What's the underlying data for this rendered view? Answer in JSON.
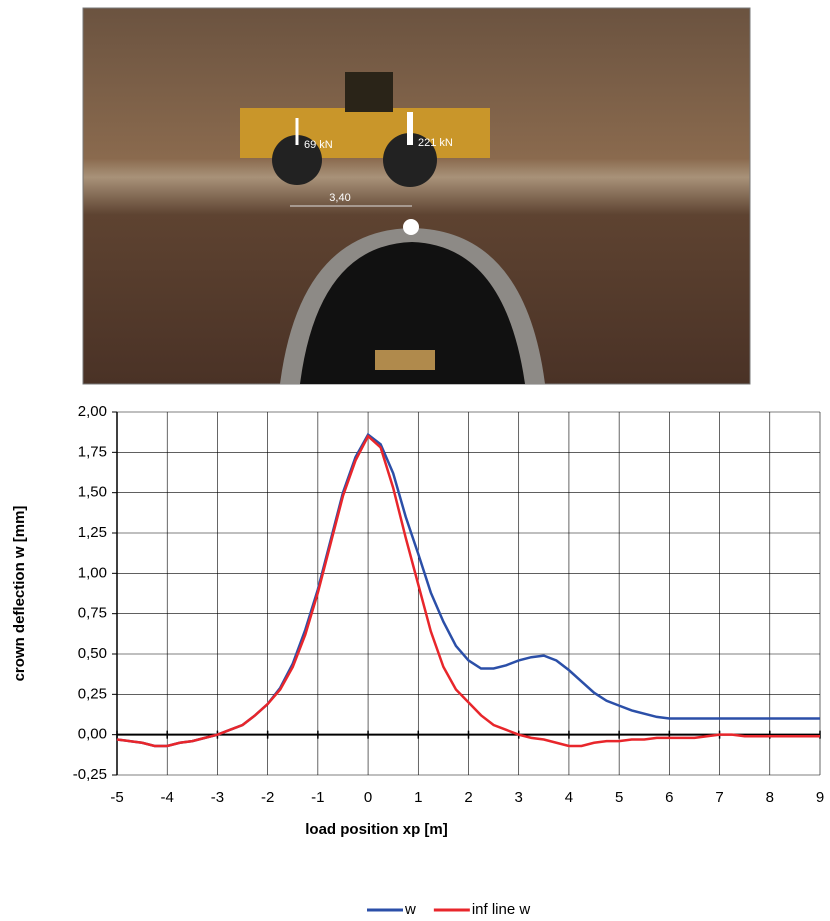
{
  "photo_labels": [
    "69 kN",
    "221 kN",
    "3,40"
  ],
  "chart_data": {
    "type": "line",
    "x_label": "load position  xp  [m]",
    "y_label": "crown deflection  w  [mm]",
    "x": [
      -5,
      -4.75,
      -4.5,
      -4.25,
      -4,
      -3.75,
      -3.5,
      -3.25,
      -3,
      -2.75,
      -2.5,
      -2.25,
      -2,
      -1.75,
      -1.5,
      -1.25,
      -1,
      -0.75,
      -0.5,
      -0.25,
      0,
      0.25,
      0.5,
      0.75,
      1,
      1.25,
      1.5,
      1.75,
      2,
      2.25,
      2.5,
      2.75,
      3,
      3.25,
      3.5,
      3.75,
      4,
      4.25,
      4.5,
      4.75,
      5,
      5.25,
      5.5,
      5.75,
      6,
      6.25,
      6.5,
      6.75,
      7,
      7.25,
      7.5,
      7.75,
      8,
      8.25,
      8.5,
      8.75,
      9
    ],
    "series": [
      {
        "name": "w",
        "color": "#2b4fa8",
        "values": [
          -0.03,
          -0.04,
          -0.05,
          -0.07,
          -0.07,
          -0.05,
          -0.04,
          -0.02,
          0,
          0.03,
          0.06,
          0.12,
          0.19,
          0.29,
          0.44,
          0.65,
          0.9,
          1.2,
          1.5,
          1.72,
          1.86,
          1.8,
          1.62,
          1.35,
          1.12,
          0.88,
          0.7,
          0.55,
          0.46,
          0.41,
          0.41,
          0.43,
          0.46,
          0.48,
          0.49,
          0.46,
          0.4,
          0.33,
          0.26,
          0.21,
          0.18,
          0.15,
          0.13,
          0.11,
          0.1,
          0.1,
          0.1,
          0.1,
          0.1,
          0.1,
          0.1,
          0.1,
          0.1,
          0.1,
          0.1,
          0.1,
          0.1
        ]
      },
      {
        "name": "inf line w",
        "color": "#e8262b",
        "values": [
          -0.03,
          -0.04,
          -0.05,
          -0.07,
          -0.07,
          -0.05,
          -0.04,
          -0.02,
          0,
          0.03,
          0.06,
          0.12,
          0.19,
          0.28,
          0.42,
          0.62,
          0.88,
          1.18,
          1.48,
          1.7,
          1.85,
          1.78,
          1.53,
          1.22,
          0.93,
          0.64,
          0.42,
          0.28,
          0.2,
          0.12,
          0.06,
          0.03,
          0,
          -0.02,
          -0.03,
          -0.05,
          -0.07,
          -0.07,
          -0.05,
          -0.04,
          -0.04,
          -0.03,
          -0.03,
          -0.02,
          -0.02,
          -0.02,
          -0.02,
          -0.01,
          0,
          0,
          -0.01,
          -0.01,
          -0.01,
          -0.01,
          -0.01,
          -0.01,
          -0.01
        ]
      }
    ],
    "xlim": [
      -5,
      9
    ],
    "xticks": [
      -5,
      -4,
      -3,
      -2,
      -1,
      0,
      1,
      2,
      3,
      4,
      5,
      6,
      7,
      8,
      9
    ],
    "ylim": [
      -0.25,
      2
    ],
    "yticks": [
      {
        "value": -0.25,
        "label": "-0,25"
      },
      {
        "value": 0,
        "label": "0,00"
      },
      {
        "value": 0.25,
        "label": "0,25"
      },
      {
        "value": 0.5,
        "label": "0,50"
      },
      {
        "value": 0.75,
        "label": "0,75"
      },
      {
        "value": 1,
        "label": "1,00"
      },
      {
        "value": 1.25,
        "label": "1,25"
      },
      {
        "value": 1.5,
        "label": "1,50"
      },
      {
        "value": 1.75,
        "label": "1,75"
      },
      {
        "value": 2,
        "label": "2,00"
      }
    ],
    "grid": true
  }
}
